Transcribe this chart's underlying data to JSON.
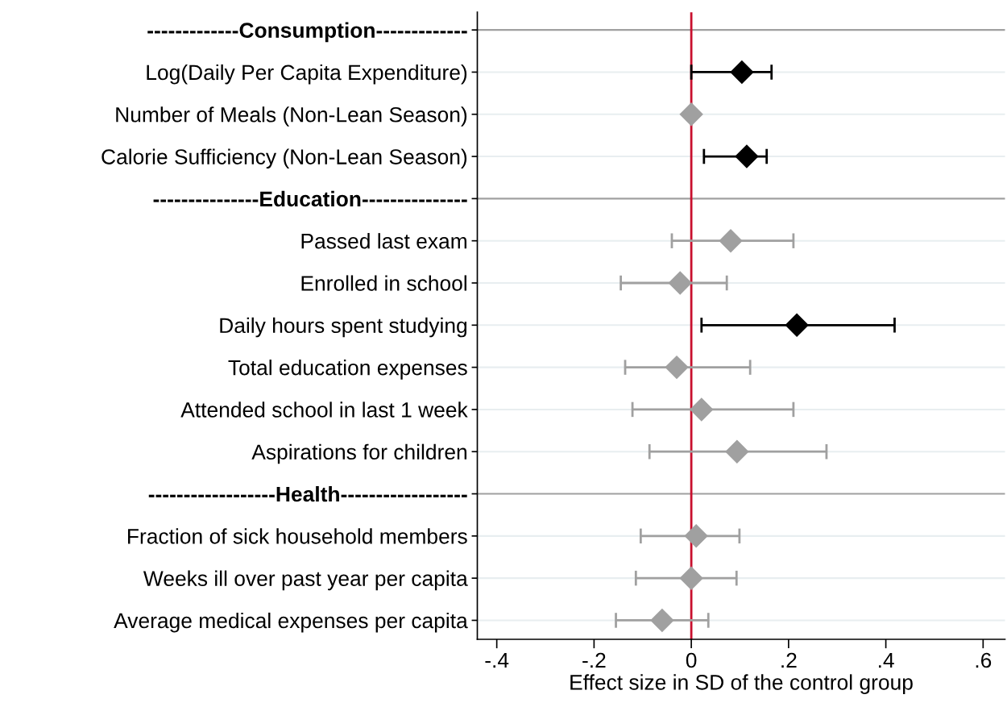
{
  "chart_data": {
    "type": "scatter",
    "orientation": "horizontal",
    "categories": [
      "-------------Consumption-------------",
      "Log(Daily Per Capita Expenditure)",
      "Number of Meals (Non-Lean Season)",
      "Calorie Sufficiency (Non-Lean Season)",
      "---------------Education---------------",
      "Passed last exam",
      "Enrolled in school",
      "Daily hours spent studying",
      "Total education expenses",
      "Attended school in last 1 week",
      "Aspirations for children",
      "------------------Health------------------",
      "Fraction of sick household members",
      "Weeks ill over past year per capita",
      "Average medical expenses per capita"
    ],
    "series": [
      {
        "color": "#000000",
        "values": [
          null,
          0.104,
          null,
          0.114,
          null,
          null,
          null,
          0.217,
          null,
          null,
          null,
          null,
          null,
          null,
          null
        ],
        "errors": [
          null,
          [
            0.0,
            0.165
          ],
          null,
          [
            0.026,
            0.155
          ],
          null,
          null,
          null,
          [
            0.021,
            0.418
          ],
          null,
          null,
          null,
          null,
          null,
          null,
          null
        ]
      },
      {
        "color": "#a0a0a0",
        "values": [
          null,
          null,
          0.0,
          null,
          null,
          0.081,
          -0.023,
          null,
          -0.03,
          0.021,
          0.094,
          null,
          0.01,
          0.0,
          -0.06
        ],
        "errors": [
          null,
          null,
          null,
          null,
          null,
          [
            -0.04,
            0.21
          ],
          [
            -0.145,
            0.073
          ],
          null,
          [
            -0.136,
            0.121
          ],
          [
            -0.121,
            0.21
          ],
          [
            -0.086,
            0.278
          ],
          null,
          [
            -0.104,
            0.099
          ],
          [
            -0.114,
            0.093
          ],
          [
            -0.155,
            0.035
          ]
        ]
      }
    ],
    "marker": "diamond",
    "xlabel": "Effect size in SD of the control group",
    "xlim": [
      -0.44,
      0.645
    ],
    "xticks": [
      {
        "value": -0.4,
        "label": "-.4"
      },
      {
        "value": -0.2,
        "label": "-.2"
      },
      0,
      {
        "value": 0.2,
        "label": ".2"
      },
      {
        "value": 0.4,
        "label": ".4"
      },
      {
        "value": 0.6,
        "label": ".6"
      }
    ],
    "grid": "y",
    "ref_lines": [
      {
        "axis": "x",
        "value": 0,
        "color": "#c8102e"
      }
    ]
  }
}
